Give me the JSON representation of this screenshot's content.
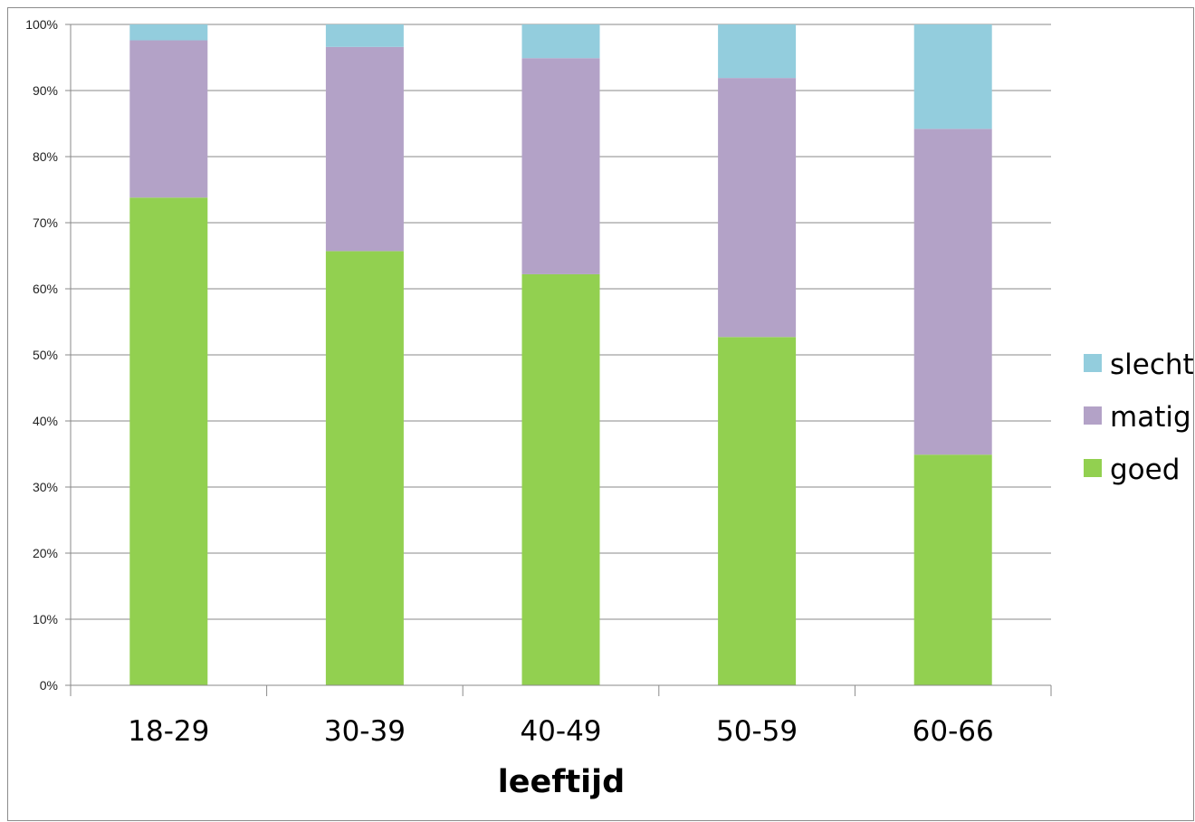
{
  "chart_data": {
    "type": "bar",
    "stacked": true,
    "percent_stacked": true,
    "categories": [
      "18-29",
      "30-39",
      "40-49",
      "50-59",
      "60-66"
    ],
    "series": [
      {
        "name": "goed",
        "color": "#92d050",
        "values": [
          73.8,
          65.7,
          62.2,
          52.7,
          34.9
        ]
      },
      {
        "name": "matig",
        "color": "#b3a2c7",
        "values": [
          23.8,
          30.9,
          32.7,
          39.2,
          49.3
        ]
      },
      {
        "name": "slecht",
        "color": "#93cddd",
        "values": [
          2.4,
          3.4,
          5.1,
          8.1,
          15.8
        ]
      }
    ],
    "title": "",
    "xlabel": "leeftijd",
    "ylabel": "",
    "ylim": [
      0,
      100
    ],
    "yticks": [
      "0%",
      "10%",
      "20%",
      "30%",
      "40%",
      "50%",
      "60%",
      "70%",
      "80%",
      "90%",
      "100%"
    ],
    "grid": true,
    "legend_position": "right",
    "legend_order": [
      "slecht",
      "matig",
      "goed"
    ]
  }
}
